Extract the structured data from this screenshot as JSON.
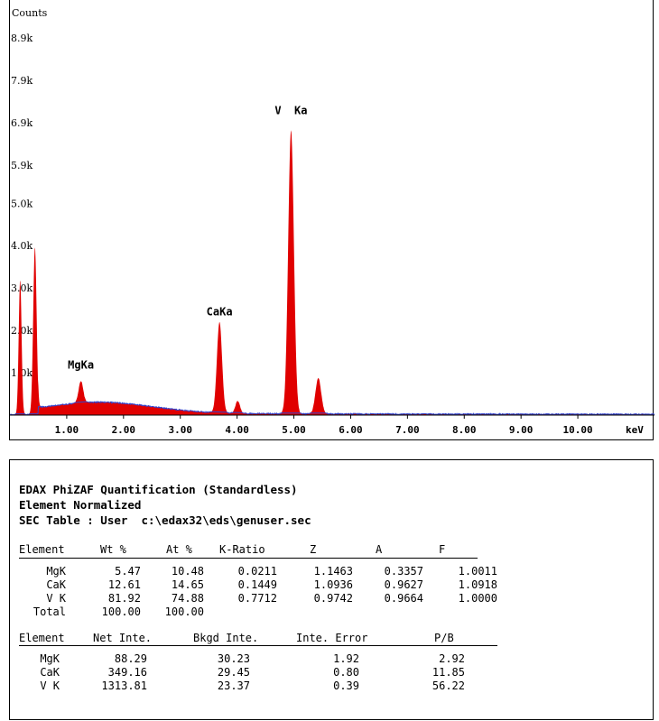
{
  "chart_data": {
    "type": "area",
    "ylabel": "Counts",
    "xlabel": "keV",
    "y_ticks": [
      "8.9k",
      "7.9k",
      "6.9k",
      "5.9k",
      "5.0k",
      "4.0k",
      "3.0k",
      "2.0k",
      "1.0k"
    ],
    "y_tick_values": [
      8900,
      7900,
      6900,
      5900,
      5000,
      4000,
      3000,
      2000,
      1000
    ],
    "x_ticks": [
      "1.00",
      "2.00",
      "3.00",
      "4.00",
      "5.00",
      "6.00",
      "7.00",
      "8.00",
      "9.00",
      "10.00"
    ],
    "x_tick_values": [
      1,
      2,
      3,
      4,
      5,
      6,
      7,
      8,
      9,
      10
    ],
    "xlim": [
      0,
      11.35
    ],
    "ylim": [
      0,
      9800
    ],
    "fill_color": "#e00000",
    "outline_color": "#3344cc",
    "peak_labels": [
      {
        "text": "MgKa",
        "x": 1.25,
        "y": 1100
      },
      {
        "text": "CaKa",
        "x": 3.69,
        "y": 2350
      },
      {
        "text": "V  Ka",
        "x": 4.95,
        "y": 7100
      }
    ],
    "peaks": [
      {
        "x": 0.18,
        "height": 3200,
        "width": 0.025
      },
      {
        "x": 0.44,
        "height": 3950,
        "width": 0.03
      },
      {
        "x": 1.25,
        "height": 520,
        "width": 0.04
      },
      {
        "x": 3.69,
        "height": 2150,
        "width": 0.045
      },
      {
        "x": 4.01,
        "height": 290,
        "width": 0.04
      },
      {
        "x": 4.95,
        "height": 6700,
        "width": 0.05
      },
      {
        "x": 5.43,
        "height": 850,
        "width": 0.05
      }
    ]
  },
  "quant": {
    "title1": "EDAX PhiZAF Quantification (Standardless)",
    "title2": "Element Normalized",
    "title3": "SEC Table : User  c:\\edax32\\eds\\genuser.sec",
    "table1_headers": [
      "Element",
      "Wt %",
      "At %",
      "K-Ratio",
      "Z",
      "A",
      "F"
    ],
    "table1_rows": [
      [
        "MgK",
        "5.47",
        "10.48",
        "0.0211",
        "1.1463",
        "0.3357",
        "1.0011"
      ],
      [
        "CaK",
        "12.61",
        "14.65",
        "0.1449",
        "1.0936",
        "0.9627",
        "1.0918"
      ],
      [
        "V K",
        "81.92",
        "74.88",
        "0.7712",
        "0.9742",
        "0.9664",
        "1.0000"
      ]
    ],
    "table1_total": [
      "Total",
      "100.00",
      "100.00"
    ],
    "table2_headers": [
      "Element",
      "Net Inte.",
      "Bkgd Inte.",
      "Inte. Error",
      "P/B"
    ],
    "table2_rows": [
      [
        "MgK",
        "88.29",
        "30.23",
        "1.92",
        "2.92"
      ],
      [
        "CaK",
        "349.16",
        "29.45",
        "0.80",
        "11.85"
      ],
      [
        "V K",
        "1313.81",
        "23.37",
        "0.39",
        "56.22"
      ]
    ]
  }
}
